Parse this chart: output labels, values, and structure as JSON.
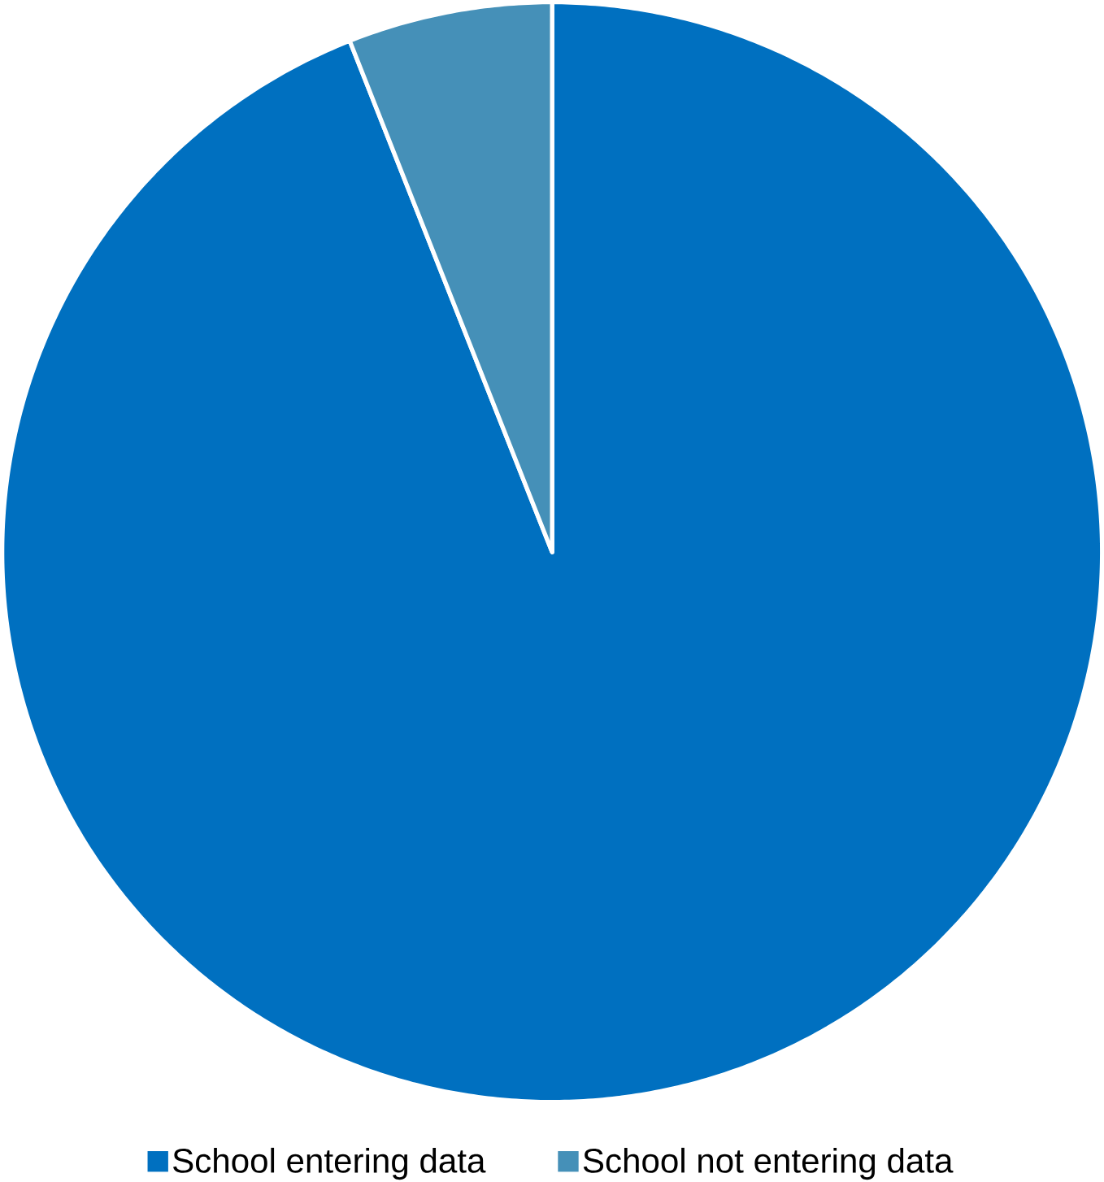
{
  "chart_data": {
    "type": "pie",
    "categories": [
      "School entering data",
      "School not entering data"
    ],
    "values": [
      94,
      6
    ],
    "colors": [
      "#0070c0",
      "#4590b8"
    ],
    "legend": "bottom"
  }
}
